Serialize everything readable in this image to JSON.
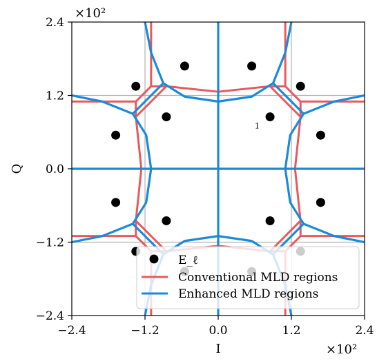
{
  "chart_data": {
    "type": "scatter",
    "title": "",
    "xlabel": "I",
    "ylabel": "Q",
    "x_multiplier_label": "×10²",
    "y_multiplier_label": "×10²",
    "xlim": [
      -240,
      240
    ],
    "ylim": [
      -240,
      240
    ],
    "xticks": [
      -240,
      -120,
      0,
      120,
      240
    ],
    "yticks": [
      -240,
      -120,
      0,
      120,
      240
    ],
    "xtick_labels": [
      "−2.4",
      "−1.2",
      "0.0",
      "1.2",
      "2.4"
    ],
    "ytick_labels": [
      "−2.4",
      "−1.2",
      "0.0",
      "1.2",
      "2.4"
    ],
    "grid": true,
    "legend_position": "bottom-right",
    "annotations": [
      {
        "text": "1",
        "x": 64,
        "y": 66
      }
    ],
    "series": [
      {
        "name": "E_ℓ",
        "kind": "points",
        "color": "#000000",
        "points": [
          [
            -55,
            168
          ],
          [
            55,
            168
          ],
          [
            -135,
            135
          ],
          [
            135,
            135
          ],
          [
            -85,
            85
          ],
          [
            85,
            85
          ],
          [
            -168,
            55
          ],
          [
            168,
            55
          ],
          [
            -168,
            -55
          ],
          [
            168,
            -55
          ],
          [
            -85,
            -85
          ],
          [
            85,
            -85
          ],
          [
            -135,
            -135
          ],
          [
            135,
            -135
          ],
          [
            -55,
            -168
          ],
          [
            55,
            -168
          ]
        ]
      },
      {
        "name": "Conventional MLD regions",
        "kind": "boundaries",
        "color": "#e8595e",
        "lines": [
          [
            [
              -110,
              240
            ],
            [
              -110,
              135
            ],
            [
              -85,
              135
            ],
            [
              0,
              126
            ],
            [
              85,
              135
            ],
            [
              110,
              135
            ],
            [
              110,
              240
            ]
          ],
          [
            [
              -240,
              110
            ],
            [
              -135,
              110
            ],
            [
              -135,
              85
            ],
            [
              -126,
              0
            ],
            [
              -135,
              -85
            ],
            [
              -135,
              -110
            ],
            [
              -240,
              -110
            ]
          ],
          [
            [
              240,
              110
            ],
            [
              135,
              110
            ],
            [
              135,
              85
            ],
            [
              126,
              0
            ],
            [
              135,
              -85
            ],
            [
              135,
              -110
            ],
            [
              240,
              -110
            ]
          ],
          [
            [
              -110,
              -240
            ],
            [
              -110,
              -135
            ],
            [
              -85,
              -135
            ],
            [
              0,
              -126
            ],
            [
              85,
              -135
            ],
            [
              110,
              -135
            ],
            [
              110,
              -240
            ]
          ],
          [
            [
              -110,
              135
            ],
            [
              -135,
              110
            ]
          ],
          [
            [
              110,
              135
            ],
            [
              135,
              110
            ]
          ],
          [
            [
              -110,
              -135
            ],
            [
              -135,
              -110
            ]
          ],
          [
            [
              110,
              -135
            ],
            [
              135,
              -110
            ]
          ],
          [
            [
              -85,
              135
            ],
            [
              -135,
              85
            ]
          ],
          [
            [
              85,
              135
            ],
            [
              135,
              85
            ]
          ],
          [
            [
              -85,
              -135
            ],
            [
              -135,
              -85
            ]
          ],
          [
            [
              85,
              -135
            ],
            [
              135,
              -85
            ]
          ]
        ]
      },
      {
        "name": "Enhanced MLD regions",
        "kind": "boundaries",
        "color": "#1a8ad8",
        "lines": [
          [
            [
              -120,
              240
            ],
            [
              -110,
              190
            ],
            [
              -90,
              140
            ],
            [
              -55,
              118
            ],
            [
              0,
              110
            ],
            [
              55,
              118
            ],
            [
              90,
              140
            ],
            [
              110,
              190
            ],
            [
              120,
              240
            ]
          ],
          [
            [
              -240,
              120
            ],
            [
              -190,
              110
            ],
            [
              -140,
              90
            ],
            [
              -118,
              55
            ],
            [
              -110,
              0
            ],
            [
              -118,
              -55
            ],
            [
              -140,
              -90
            ],
            [
              -190,
              -110
            ],
            [
              -240,
              -120
            ]
          ],
          [
            [
              240,
              120
            ],
            [
              190,
              110
            ],
            [
              140,
              90
            ],
            [
              118,
              55
            ],
            [
              110,
              0
            ],
            [
              118,
              -55
            ],
            [
              140,
              -90
            ],
            [
              190,
              -110
            ],
            [
              240,
              -120
            ]
          ],
          [
            [
              -120,
              -240
            ],
            [
              -110,
              -190
            ],
            [
              -90,
              -140
            ],
            [
              -55,
              -118
            ],
            [
              0,
              -110
            ],
            [
              55,
              -118
            ],
            [
              90,
              -140
            ],
            [
              110,
              -190
            ],
            [
              120,
              -240
            ]
          ],
          [
            [
              -90,
              140
            ],
            [
              -140,
              90
            ]
          ],
          [
            [
              90,
              140
            ],
            [
              140,
              90
            ]
          ],
          [
            [
              -90,
              -140
            ],
            [
              -140,
              -90
            ]
          ],
          [
            [
              90,
              -140
            ],
            [
              140,
              -90
            ]
          ],
          [
            [
              0,
              240
            ],
            [
              0,
              -240
            ]
          ],
          [
            [
              -240,
              0
            ],
            [
              240,
              0
            ]
          ]
        ]
      }
    ]
  }
}
